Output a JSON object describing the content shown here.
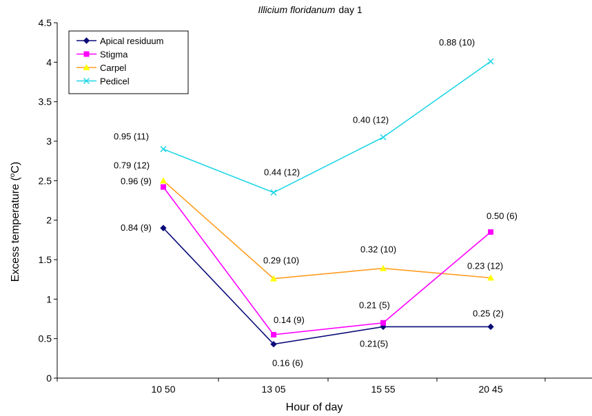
{
  "chart_data": {
    "type": "line",
    "title": {
      "italic": "Illicium floridanum",
      "rest": "day 1"
    },
    "xlabel": "Hour of day",
    "ylabel": {
      "pre": "Excess temperature (",
      "sup": "o",
      "post": "C)"
    },
    "categories": [
      "10 50",
      "13 05",
      "15 55",
      "20 45"
    ],
    "ylim": [
      0,
      4.5
    ],
    "yticks": [
      0,
      0.5,
      1,
      1.5,
      2,
      2.5,
      3,
      3.5,
      4,
      4.5
    ],
    "ytick_labels": [
      "0",
      "0.5",
      "1",
      "1.5",
      "2",
      "2.5",
      "3",
      "3.5",
      "4",
      "4.5"
    ],
    "grid": false,
    "legend_position": "top-left",
    "series": [
      {
        "name": "Apical residuum",
        "color": "#0a0a78",
        "marker": "diamond",
        "values": [
          1.9,
          0.43,
          0.65,
          0.65
        ],
        "labels": [
          "0.84 (9)",
          "0.16 (6)",
          "0.21(5)",
          "0.25 (2)"
        ]
      },
      {
        "name": "Stigma",
        "color": "#ff00ff",
        "marker": "square",
        "values": [
          2.42,
          0.55,
          0.7,
          1.85
        ],
        "labels": [
          "0.96 (9)",
          "0.14 (9)",
          "0.21 (5)",
          "0.50 (6)"
        ]
      },
      {
        "name": "Carpel",
        "color": "#ff9c1e",
        "marker": "triangle",
        "marker_color": "#ffff00",
        "values": [
          2.5,
          1.26,
          1.39,
          1.27
        ],
        "labels": [
          "0.79 (12)",
          "0.29 (10)",
          "0.32 (10)",
          "0.23 (12)"
        ]
      },
      {
        "name": "Pedicel",
        "color": "#1fd6e6",
        "marker": "x",
        "values": [
          2.9,
          2.35,
          3.05,
          4.01
        ],
        "labels": [
          "0.95 (11)",
          "0.44 (12)",
          "0.40 (12)",
          "0.88 (10)"
        ]
      }
    ]
  }
}
